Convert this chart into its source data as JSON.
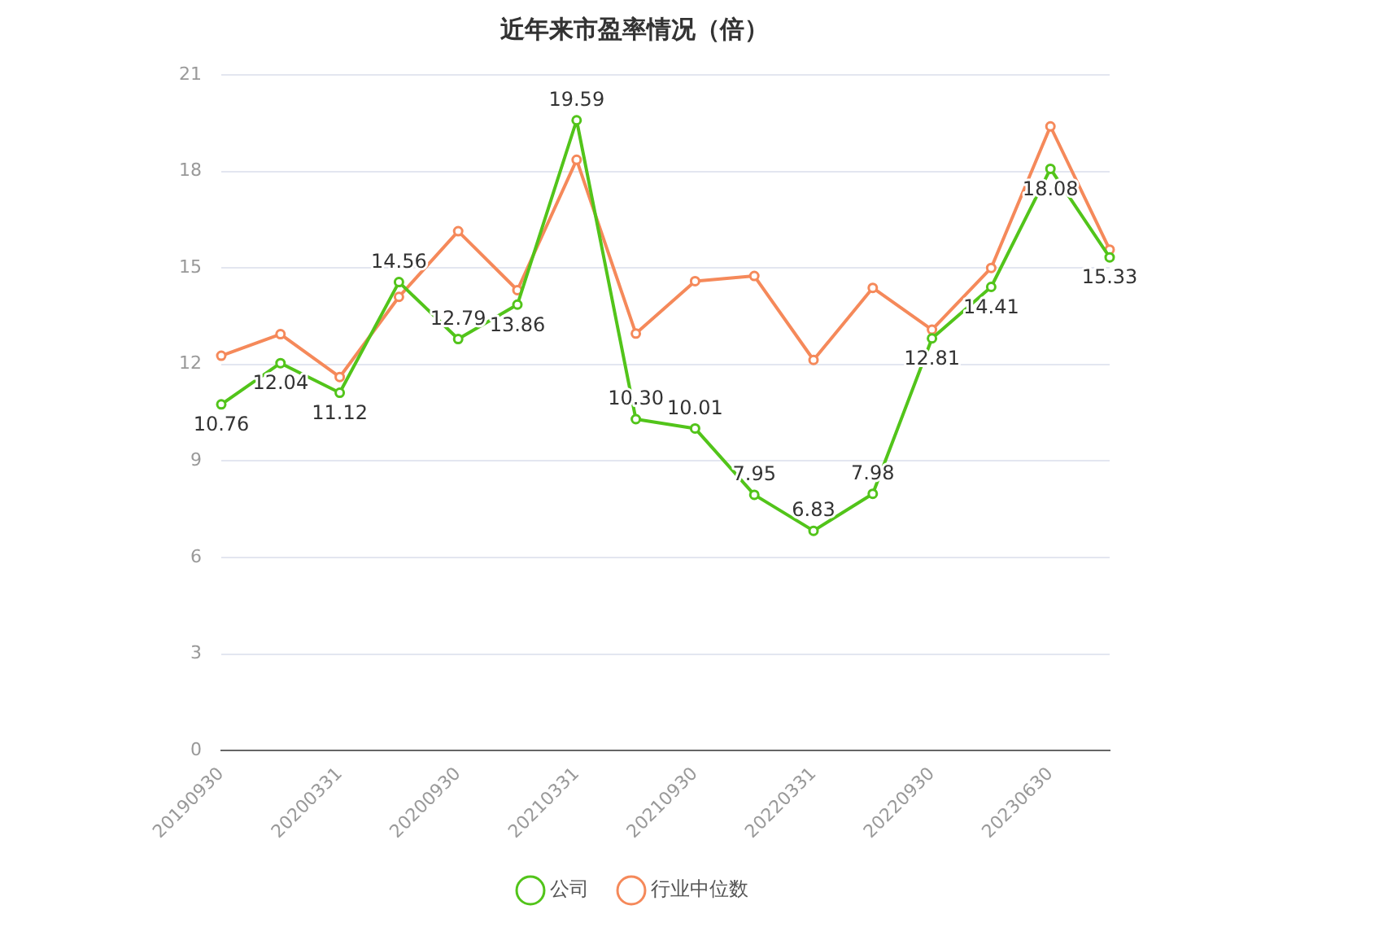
{
  "chart_data": {
    "type": "line",
    "title": "近年来市盈率情况（倍）",
    "categories": [
      "20190930",
      null,
      "20200331",
      null,
      "20200930",
      null,
      "20210331",
      null,
      "20210930",
      null,
      "20220331",
      null,
      "20220930",
      null,
      "20230630",
      null
    ],
    "series": [
      {
        "name": "公司",
        "color": "#52c41a",
        "values": [
          10.76,
          12.04,
          11.12,
          14.56,
          12.79,
          13.86,
          19.59,
          10.3,
          10.01,
          7.95,
          6.83,
          7.98,
          12.81,
          14.41,
          18.08,
          15.33
        ],
        "value_labels": [
          "10.76",
          "12.04",
          "11.12",
          "14.56",
          "12.79",
          "13.86",
          "19.59",
          "10.30",
          "10.01",
          "7.95",
          "6.83",
          "7.98",
          "12.81",
          "14.41",
          "18.08",
          "15.33"
        ]
      },
      {
        "name": "行业中位数",
        "color": "#f5895a",
        "values": [
          12.27,
          12.94,
          11.61,
          14.1,
          16.14,
          14.31,
          18.36,
          12.96,
          14.59,
          14.75,
          12.14,
          14.38,
          13.08,
          15.0,
          19.4,
          15.57
        ]
      }
    ],
    "ylim": [
      0,
      21
    ],
    "yticks": [
      0,
      3,
      6,
      9,
      12,
      15,
      18,
      21
    ],
    "grid": "y",
    "legend": "bottom",
    "marker": "circle",
    "line_style": "solid"
  }
}
